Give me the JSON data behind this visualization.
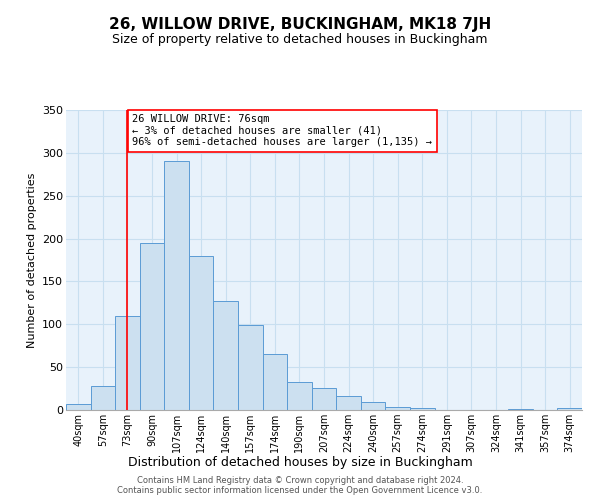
{
  "title": "26, WILLOW DRIVE, BUCKINGHAM, MK18 7JH",
  "subtitle": "Size of property relative to detached houses in Buckingham",
  "xlabel": "Distribution of detached houses by size in Buckingham",
  "ylabel": "Number of detached properties",
  "bar_labels": [
    "40sqm",
    "57sqm",
    "73sqm",
    "90sqm",
    "107sqm",
    "124sqm",
    "140sqm",
    "157sqm",
    "174sqm",
    "190sqm",
    "207sqm",
    "224sqm",
    "240sqm",
    "257sqm",
    "274sqm",
    "291sqm",
    "307sqm",
    "324sqm",
    "341sqm",
    "357sqm",
    "374sqm"
  ],
  "bar_values": [
    7,
    28,
    110,
    195,
    290,
    180,
    127,
    99,
    65,
    33,
    26,
    16,
    9,
    4,
    2,
    0,
    0,
    0,
    1,
    0,
    2
  ],
  "bar_color": "#cce0f0",
  "bar_edge_color": "#5b9bd5",
  "vline_x_index": 2,
  "annotation_box_text": "26 WILLOW DRIVE: 76sqm\n← 3% of detached houses are smaller (41)\n96% of semi-detached houses are larger (1,135) →",
  "ylim": [
    0,
    350
  ],
  "yticks": [
    0,
    50,
    100,
    150,
    200,
    250,
    300,
    350
  ],
  "footer_line1": "Contains HM Land Registry data © Crown copyright and database right 2024.",
  "footer_line2": "Contains public sector information licensed under the Open Government Licence v3.0.",
  "bg_color": "#ffffff",
  "grid_color": "#c8dff0",
  "plot_bg_color": "#e8f2fb"
}
